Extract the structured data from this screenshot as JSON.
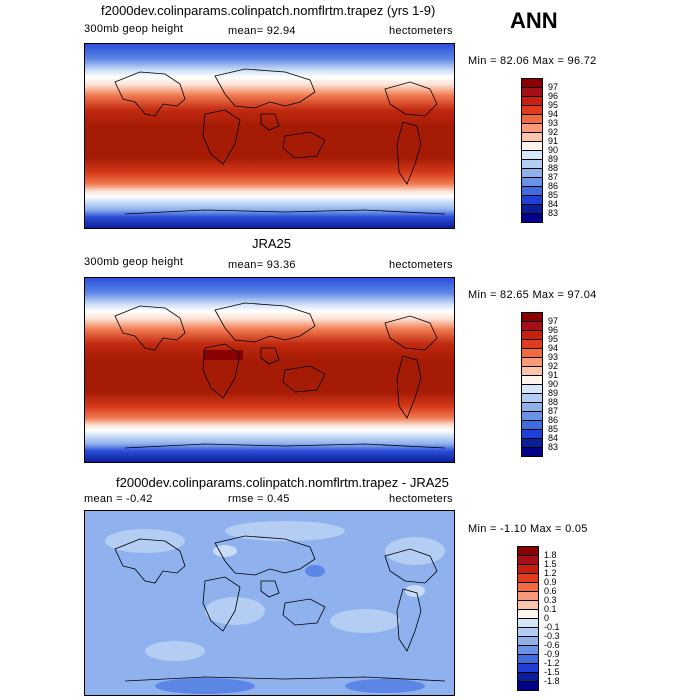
{
  "season_label": "ANN",
  "panels": [
    {
      "title": "f2000dev.colinparams.colinpatch.nomflrtm.trapez (yrs 1-9)",
      "left_label": "300mb geop height",
      "center_label": "mean=  92.94",
      "right_label": "hectometers",
      "minmax_label": "Min =  82.06 Max =  96.72",
      "colorbar": {
        "levels": [
          "97",
          "96",
          "95",
          "94",
          "93",
          "92",
          "91",
          "90",
          "89",
          "88",
          "87",
          "86",
          "85",
          "84",
          "83"
        ],
        "colors": [
          "#8b0000",
          "#a50f15",
          "#c81f0f",
          "#e03b1c",
          "#f26a3f",
          "#fa9a78",
          "#fcc4ab",
          "#fff5ec",
          "#d6e6f8",
          "#b3cdf3",
          "#8eb1ec",
          "#6b93e5",
          "#3f6ae0",
          "#1f3fd6",
          "#0a1e9a",
          "#00008b"
        ]
      }
    },
    {
      "title": "JRA25",
      "left_label": "300mb geop height",
      "center_label": "mean=  93.36",
      "right_label": "hectometers",
      "minmax_label": "Min =  82.65 Max =  97.04",
      "colorbar": {
        "levels": [
          "97",
          "96",
          "95",
          "94",
          "93",
          "92",
          "91",
          "90",
          "89",
          "88",
          "87",
          "86",
          "85",
          "84",
          "83"
        ],
        "colors": [
          "#8b0000",
          "#a50f15",
          "#c81f0f",
          "#e03b1c",
          "#f26a3f",
          "#fa9a78",
          "#fcc4ab",
          "#fff5ec",
          "#d6e6f8",
          "#b3cdf3",
          "#8eb1ec",
          "#6b93e5",
          "#3f6ae0",
          "#1f3fd6",
          "#0a1e9a",
          "#00008b"
        ]
      }
    },
    {
      "title": "f2000dev.colinparams.colinpatch.nomflrtm.trapez - JRA25",
      "left_label": "mean =  -0.42",
      "center_label": "rmse =   0.45",
      "right_label": "hectometers",
      "minmax_label": "Min =  -1.10 Max =   0.05",
      "colorbar": {
        "levels": [
          "1.8",
          "1.5",
          "1.2",
          "0.9",
          "0.6",
          "0.3",
          "0.1",
          "0",
          "-0.1",
          "-0.3",
          "-0.6",
          "-0.9",
          "-1.2",
          "-1.5",
          "-1.8"
        ],
        "colors": [
          "#8b0000",
          "#a50f15",
          "#c81f0f",
          "#e03b1c",
          "#f26a3f",
          "#fa9a78",
          "#fcc4ab",
          "#fff5ec",
          "#d6e6f8",
          "#b3cdf3",
          "#8eb1ec",
          "#6b93e5",
          "#3f6ae0",
          "#1f3fd6",
          "#0a1e9a",
          "#00008b"
        ]
      }
    }
  ],
  "map_colors": {
    "deep_red": "#b22000",
    "red": "#d63b1a",
    "orange": "#f07a50",
    "pale": "#fbe3d6",
    "white": "#ffffff",
    "light_blue": "#c9dcf6",
    "mid_blue": "#8fb2ee",
    "blue": "#5c86e6",
    "dark_blue": "#2b4fd8",
    "navy": "#0a1e9a",
    "diff_base": "#8fb2ee",
    "diff_light": "#b3cdf3",
    "diff_dark": "#5c86e6"
  }
}
